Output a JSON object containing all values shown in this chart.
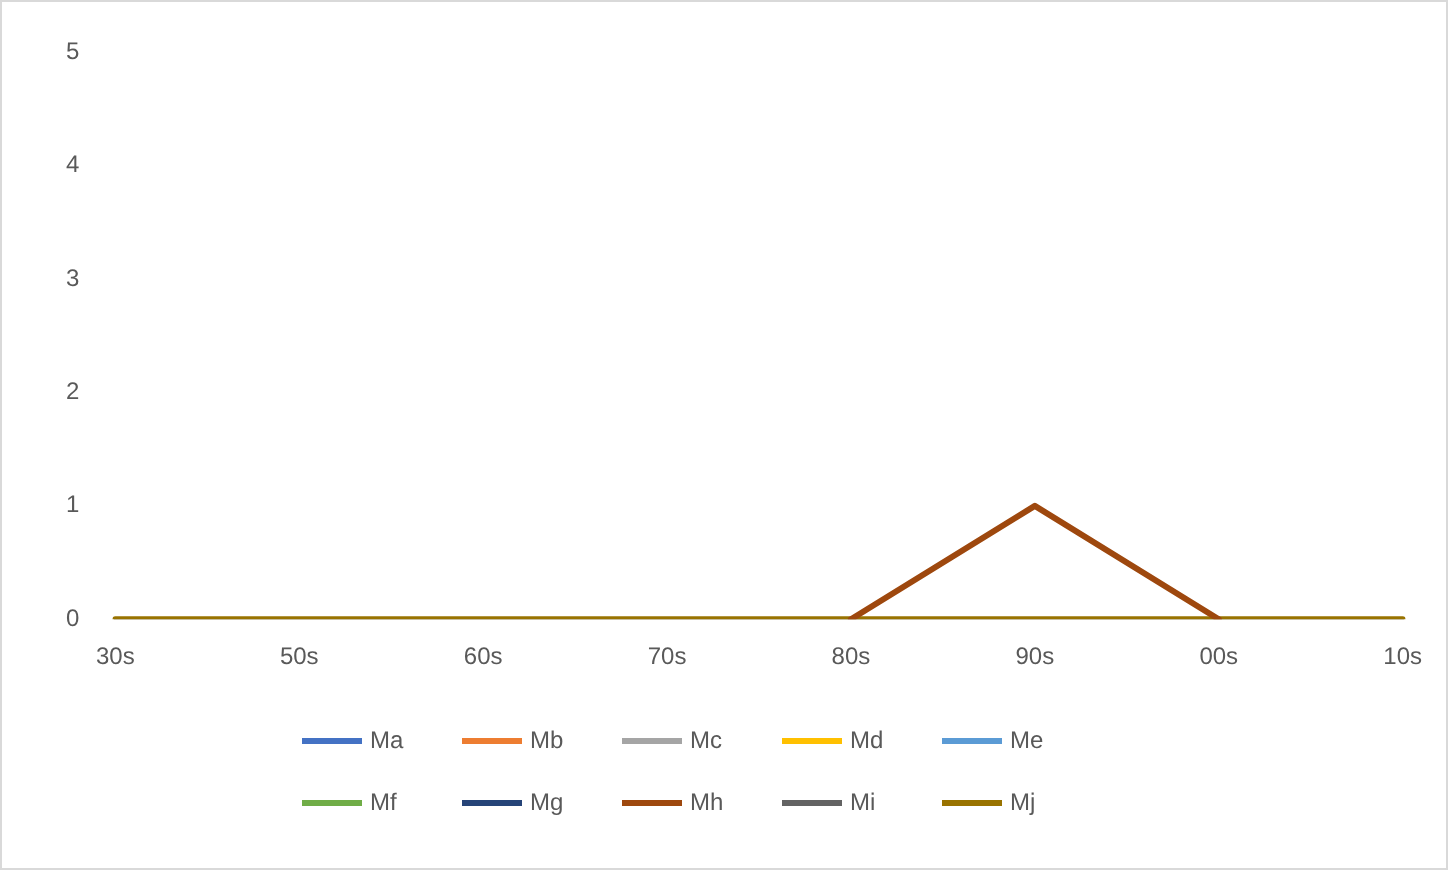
{
  "chart_data": {
    "type": "line",
    "categories": [
      "30s",
      "50s",
      "60s",
      "70s",
      "80s",
      "90s",
      "00s",
      "10s"
    ],
    "series": [
      {
        "name": "Ma",
        "color": "#4472c4",
        "values": [
          null,
          null,
          null,
          null,
          null,
          null,
          null,
          null
        ]
      },
      {
        "name": "Mb",
        "color": "#ed7d31",
        "values": [
          null,
          null,
          null,
          null,
          null,
          null,
          null,
          null
        ]
      },
      {
        "name": "Mc",
        "color": "#a5a5a5",
        "values": [
          null,
          null,
          null,
          null,
          null,
          null,
          null,
          null
        ]
      },
      {
        "name": "Md",
        "color": "#ffc000",
        "values": [
          null,
          null,
          null,
          null,
          null,
          null,
          null,
          null
        ]
      },
      {
        "name": "Me",
        "color": "#5b9bd5",
        "values": [
          null,
          null,
          null,
          null,
          null,
          null,
          null,
          null
        ]
      },
      {
        "name": "Mf",
        "color": "#70ad47",
        "values": [
          null,
          null,
          null,
          null,
          null,
          null,
          null,
          null
        ]
      },
      {
        "name": "Mg",
        "color": "#264478",
        "values": [
          null,
          null,
          null,
          null,
          null,
          null,
          null,
          null
        ]
      },
      {
        "name": "Mh",
        "color": "#9e480e",
        "values": [
          null,
          null,
          null,
          null,
          0,
          1,
          0,
          null
        ]
      },
      {
        "name": "Mi",
        "color": "#636363",
        "values": [
          null,
          null,
          null,
          null,
          null,
          null,
          null,
          null
        ]
      },
      {
        "name": "Mj",
        "color": "#997300",
        "values": [
          0,
          0,
          0,
          0,
          0,
          0,
          0,
          0
        ]
      }
    ],
    "ylim": [
      0,
      5
    ],
    "yticks": [
      0,
      1,
      2,
      3,
      4,
      5
    ],
    "grid": false,
    "legend": "bottom",
    "marker": "none",
    "line_style": "solid"
  }
}
